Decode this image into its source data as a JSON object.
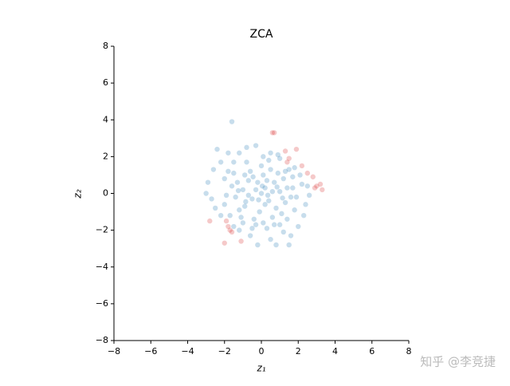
{
  "chart_data": {
    "type": "scatter",
    "title": "ZCA",
    "x_label": "z₁",
    "y_label": "z₂",
    "watermark": "知乎 @李竞捷",
    "xlim": [
      -8,
      8
    ],
    "ylim": [
      -8,
      8
    ],
    "xticks": [
      {
        "value": -8,
        "label": "−8"
      },
      {
        "value": -6,
        "label": "−6"
      },
      {
        "value": -4,
        "label": "−4"
      },
      {
        "value": -2,
        "label": "−2"
      },
      0,
      2,
      4,
      6,
      8
    ],
    "yticks": [
      {
        "value": -8,
        "label": "−8"
      },
      {
        "value": -6,
        "label": "−6"
      },
      {
        "value": -4,
        "label": "−4"
      },
      {
        "value": -2,
        "label": "−2"
      },
      0,
      2,
      4,
      6,
      8
    ],
    "series": [
      {
        "color": "#1f77b4",
        "x": [
          -1.6,
          -2.4,
          -1.8,
          -2.2,
          -2.6,
          -2.9,
          -3.0,
          -2.7,
          -2.5,
          -2.2,
          -1.5,
          -0.6,
          -0.2,
          0.5,
          0.8,
          1.5,
          1.6,
          2.0,
          2.3,
          2.4,
          2.6,
          2.2,
          2.5,
          2.1,
          1.8,
          1.0,
          0.5,
          -0.3,
          -0.8,
          -1.2,
          0.1,
          0.9,
          1.3,
          1.7,
          -1.8,
          -2.0,
          -1.9,
          -2.0,
          -1.7,
          -1.0,
          -0.5,
          0.3,
          1.0,
          1.4,
          1.8,
          1.9,
          1.7,
          -1.5,
          1.2,
          -1.2,
          0,
          0.2,
          -0.3,
          0.4,
          -0.5,
          0.7,
          -0.7,
          0.8,
          -0.9,
          1.0,
          -1.0,
          0.1,
          -0.1,
          1.2,
          -1.2,
          0.5,
          -0.6,
          0.6,
          -0.4,
          1.3,
          -1.3,
          1.4,
          -1.4,
          0.3,
          -0.2,
          0.9,
          -0.9,
          0.2,
          -0.7,
          0.6,
          1.1,
          -1.1,
          0.0,
          0.1,
          1.5,
          -1.5,
          1.6,
          -1.6,
          0.4,
          -0.8,
          0.7,
          -0.3,
          0.05,
          -0.45,
          0.35,
          -0.15,
          0.85,
          -0.85,
          1.15,
          -1.25
        ],
        "values": [
          3.9,
          2.4,
          2.2,
          1.7,
          1.3,
          0.6,
          0.0,
          -0.3,
          -0.8,
          -1.2,
          -1.8,
          -2.3,
          -2.8,
          -2.5,
          -2.8,
          -2.8,
          -2.3,
          -1.8,
          -1.2,
          -0.6,
          -0.1,
          0.5,
          0.4,
          1.0,
          1.4,
          1.9,
          2.2,
          2.6,
          2.5,
          2.2,
          2.0,
          2.1,
          1.2,
          0.9,
          1.2,
          0.8,
          -0.1,
          -0.6,
          -1.2,
          -1.6,
          -1.9,
          -1.9,
          -1.7,
          -1.4,
          -0.9,
          -0.2,
          0.3,
          1.7,
          -2.1,
          -2.0,
          0,
          0.3,
          0.2,
          -0.4,
          -0.3,
          0.6,
          0.7,
          -0.8,
          -0.7,
          0.1,
          0.2,
          1.0,
          -1.0,
          0.8,
          -0.9,
          1.3,
          1.2,
          -1.3,
          -1.4,
          -0.5,
          0.6,
          0.3,
          -0.2,
          0.7,
          0.6,
          1.1,
          1.0,
          -0.6,
          -0.1,
          0.1,
          -1.1,
          -1.3,
          1.5,
          -1.6,
          1.3,
          1.1,
          -0.2,
          0.4,
          1.8,
          1.7,
          -1.7,
          -1.7,
          0.4,
          0.9,
          -0.1,
          -0.35,
          0.35,
          -0.45,
          -0.25,
          0.15
        ]
      },
      {
        "color": "#d62728",
        "x": [
          0.6,
          0.7,
          1.3,
          1.9,
          1.5,
          1.4,
          2.2,
          2.5,
          2.8,
          3.0,
          3.2,
          3.3,
          2.9,
          -2.8,
          -1.9,
          -1.8,
          -1.7,
          -1.6,
          -2.0,
          -1.1
        ],
        "values": [
          3.3,
          3.3,
          2.3,
          2.4,
          1.9,
          1.7,
          1.5,
          1.1,
          0.9,
          0.4,
          0.5,
          0.2,
          0.3,
          -1.5,
          -1.5,
          -1.8,
          -2.0,
          -2.1,
          -2.7,
          -2.6
        ]
      }
    ]
  }
}
